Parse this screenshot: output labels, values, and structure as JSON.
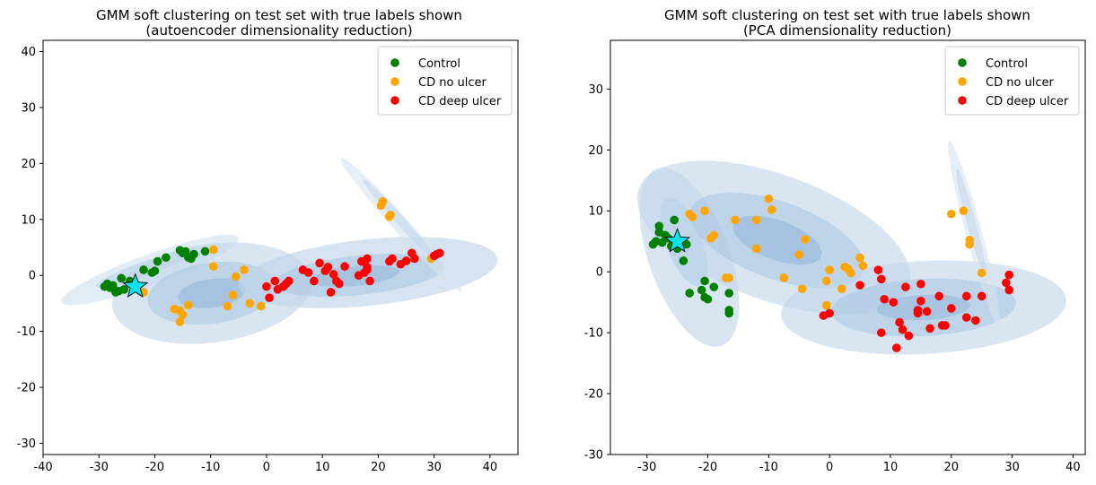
{
  "chart_data": [
    {
      "type": "scatter",
      "title": "GMM soft clustering on test set with true labels shown",
      "subtitle": "(autoencoder dimensionality reduction)",
      "xlim": [
        -40,
        45
      ],
      "ylim": [
        -32,
        42
      ],
      "x_ticks": [
        -40,
        -30,
        -20,
        -10,
        0,
        10,
        20,
        30,
        40
      ],
      "y_ticks": [
        -30,
        -20,
        -10,
        0,
        10,
        20,
        30,
        40
      ],
      "legend_position": "top-right",
      "series": [
        {
          "name": "Control",
          "color": "#008000",
          "points": [
            [
              -29,
              -2
            ],
            [
              -28.5,
              -1.5
            ],
            [
              -28,
              -2.2
            ],
            [
              -27.5,
              -1.8
            ],
            [
              -27,
              -3
            ],
            [
              -26.5,
              -2.8
            ],
            [
              -26,
              -0.5
            ],
            [
              -25.5,
              -2.5
            ],
            [
              -24.5,
              -1
            ],
            [
              -23.5,
              -1.5
            ],
            [
              -22,
              1
            ],
            [
              -20.5,
              0.5
            ],
            [
              -20,
              0.8
            ],
            [
              -19.5,
              2.5
            ],
            [
              -18,
              3.2
            ],
            [
              -15.5,
              4.5
            ],
            [
              -15,
              4
            ],
            [
              -14.5,
              4.3
            ],
            [
              -14,
              3.2
            ],
            [
              -13.5,
              3
            ],
            [
              -13,
              3.8
            ],
            [
              -11,
              4.3
            ]
          ]
        },
        {
          "name": "CD no ulcer",
          "color": "#ffa500",
          "points": [
            [
              -22,
              -3
            ],
            [
              -16.5,
              -6
            ],
            [
              -15.5,
              -6.3
            ],
            [
              -15.5,
              -8.3
            ],
            [
              -15,
              -7
            ],
            [
              -14,
              -5.3
            ],
            [
              -9.5,
              4.6
            ],
            [
              -9.5,
              1.6
            ],
            [
              -7,
              -5.5
            ],
            [
              -6,
              -3.5
            ],
            [
              -5.5,
              -0.2
            ],
            [
              -4,
              1
            ],
            [
              -3,
              -5
            ],
            [
              -1,
              -5.5
            ],
            [
              20.5,
              12.5
            ],
            [
              20.8,
              13.2
            ],
            [
              22,
              10.5
            ],
            [
              22.2,
              10.8
            ],
            [
              29.5,
              3
            ]
          ]
        },
        {
          "name": "CD deep ulcer",
          "color": "#ff0000",
          "points": [
            [
              0,
              -2
            ],
            [
              0.5,
              -4
            ],
            [
              1.5,
              -1
            ],
            [
              2,
              -2.5
            ],
            [
              3,
              -2
            ],
            [
              3.5,
              -1.5
            ],
            [
              4,
              -1
            ],
            [
              6.5,
              1
            ],
            [
              7.5,
              0.5
            ],
            [
              8.5,
              -1
            ],
            [
              9.5,
              2.2
            ],
            [
              10.5,
              0.8
            ],
            [
              11,
              1.5
            ],
            [
              11.5,
              -3
            ],
            [
              12,
              0.2
            ],
            [
              12.5,
              -1
            ],
            [
              13,
              -1.5
            ],
            [
              14,
              1.6
            ],
            [
              16.5,
              0
            ],
            [
              17,
              2.5
            ],
            [
              17.5,
              0.5
            ],
            [
              18,
              1
            ],
            [
              18,
              1.5
            ],
            [
              18,
              3
            ],
            [
              18.5,
              -1
            ],
            [
              22,
              2.5
            ],
            [
              22.5,
              3
            ],
            [
              24,
              2
            ],
            [
              25,
              2.6
            ],
            [
              26,
              4
            ],
            [
              26.5,
              3
            ],
            [
              30,
              3.5
            ],
            [
              30.5,
              3.8
            ],
            [
              31,
              4
            ]
          ]
        }
      ],
      "means": [
        [
          -23.5,
          -2
        ]
      ]
    },
    {
      "type": "scatter",
      "title": "GMM soft clustering on test set with true labels shown",
      "subtitle": "(PCA dimensionality reduction)",
      "xlim": [
        -36,
        42
      ],
      "ylim": [
        -30,
        38
      ],
      "x_ticks": [
        -30,
        -20,
        -10,
        0,
        10,
        20,
        30,
        40
      ],
      "y_ticks": [
        -30,
        -20,
        -10,
        0,
        10,
        20,
        30
      ],
      "legend_position": "top-right",
      "series": [
        {
          "name": "Control",
          "color": "#008000",
          "points": [
            [
              -29,
              4.5
            ],
            [
              -28.5,
              5
            ],
            [
              -28,
              6.5
            ],
            [
              -28,
              7.5
            ],
            [
              -27.5,
              4.8
            ],
            [
              -27,
              6
            ],
            [
              -26.5,
              5.5
            ],
            [
              -26,
              4.2
            ],
            [
              -25.5,
              8.5
            ],
            [
              -25,
              3.8
            ],
            [
              -24.5,
              5
            ],
            [
              -24,
              1.8
            ],
            [
              -23.5,
              4.5
            ],
            [
              -23,
              -3.5
            ],
            [
              -21,
              -3
            ],
            [
              -20.5,
              -1.5
            ],
            [
              -20.5,
              -4.2
            ],
            [
              -20,
              -4.5
            ],
            [
              -19,
              -2.5
            ],
            [
              -16.5,
              -3.5
            ],
            [
              -16.5,
              -6.3
            ],
            [
              -16.5,
              -6.8
            ]
          ]
        },
        {
          "name": "CD no ulcer",
          "color": "#ffa500",
          "points": [
            [
              -23,
              9.5
            ],
            [
              -22.5,
              9
            ],
            [
              -20.5,
              10
            ],
            [
              -19.5,
              5.5
            ],
            [
              -19,
              6
            ],
            [
              -17,
              -1
            ],
            [
              -16.5,
              -1
            ],
            [
              -15.5,
              8.5
            ],
            [
              -12,
              8.5
            ],
            [
              -12,
              3.8
            ],
            [
              -10,
              12
            ],
            [
              -9.5,
              10.2
            ],
            [
              -7.5,
              -1
            ],
            [
              -5,
              2.8
            ],
            [
              -4.5,
              -2.8
            ],
            [
              -4,
              5.3
            ],
            [
              -0.5,
              -1.5
            ],
            [
              -0.5,
              -5.5
            ],
            [
              0,
              0.3
            ],
            [
              2,
              -2.8
            ],
            [
              2.5,
              0.8
            ],
            [
              3,
              0.5
            ],
            [
              3.5,
              -0.2
            ],
            [
              5,
              2.3
            ],
            [
              5.5,
              1
            ],
            [
              20,
              9.5
            ],
            [
              22,
              10
            ],
            [
              23,
              4.5
            ],
            [
              23,
              5.2
            ],
            [
              25,
              -0.2
            ]
          ]
        },
        {
          "name": "CD deep ulcer",
          "color": "#ff0000",
          "points": [
            [
              -1,
              -7.2
            ],
            [
              0,
              -6.8
            ],
            [
              5,
              -2.2
            ],
            [
              8,
              0.3
            ],
            [
              8.5,
              -1.2
            ],
            [
              8.5,
              -10
            ],
            [
              9,
              -4.5
            ],
            [
              10.5,
              -5
            ],
            [
              11,
              -12.5
            ],
            [
              11.5,
              -8.3
            ],
            [
              12,
              -9.5
            ],
            [
              12.5,
              -2.5
            ],
            [
              13,
              -10.5
            ],
            [
              14.5,
              -6.3
            ],
            [
              14.5,
              -6.8
            ],
            [
              15,
              -4.8
            ],
            [
              15,
              -2
            ],
            [
              16,
              -6.5
            ],
            [
              16.5,
              -9.3
            ],
            [
              18,
              -4
            ],
            [
              18.5,
              -8.8
            ],
            [
              19,
              -8.8
            ],
            [
              20,
              -6
            ],
            [
              22.5,
              -4
            ],
            [
              22.5,
              -7.5
            ],
            [
              24,
              -8
            ],
            [
              25,
              -4
            ],
            [
              29,
              -1.8
            ],
            [
              29.5,
              -3
            ],
            [
              29.5,
              -0.5
            ]
          ]
        }
      ],
      "means": [
        [
          -25,
          5
        ]
      ]
    }
  ]
}
